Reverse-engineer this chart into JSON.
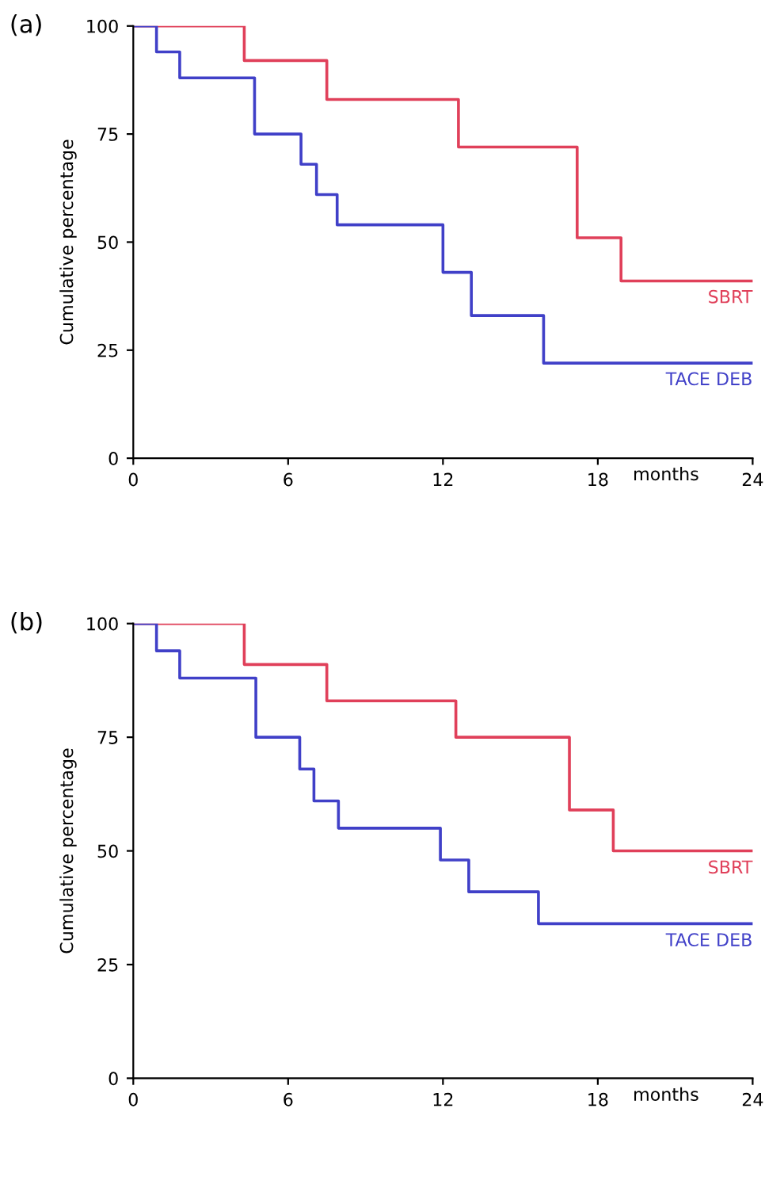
{
  "chart_data": [
    {
      "type": "step",
      "title": "(a)",
      "xlabel": "months",
      "ylabel": "Cumulative percentage",
      "xlim": [
        0,
        24
      ],
      "xticks": [
        0,
        6,
        12,
        18,
        24
      ],
      "ylim": [
        0,
        100
      ],
      "yticks": [
        0,
        25,
        50,
        75,
        100
      ],
      "grid": false,
      "legend": false,
      "series": [
        {
          "name": "SBRT",
          "color": "#e0405a",
          "x": [
            0,
            4.3,
            7.5,
            12.6,
            17.2,
            18.9,
            24
          ],
          "values": [
            100,
            92,
            83,
            72,
            51,
            41,
            41
          ]
        },
        {
          "name": "TACE DEB",
          "color": "#4040c8",
          "x": [
            0,
            0.9,
            1.8,
            4.7,
            6.5,
            7.1,
            7.9,
            12.0,
            13.1,
            15.9,
            24
          ],
          "values": [
            100,
            94,
            88,
            75,
            68,
            61,
            54,
            43,
            33,
            22,
            22
          ]
        }
      ]
    },
    {
      "type": "step",
      "title": "(b)",
      "xlabel": "months",
      "ylabel": "Cumulative percentage",
      "xlim": [
        0,
        24
      ],
      "xticks": [
        0,
        6,
        12,
        18,
        24
      ],
      "ylim": [
        0,
        100
      ],
      "yticks": [
        0,
        25,
        50,
        75,
        100
      ],
      "grid": false,
      "legend": false,
      "series": [
        {
          "name": "SBRT",
          "color": "#e0405a",
          "x": [
            0,
            4.3,
            7.5,
            12.5,
            16.9,
            18.6,
            24
          ],
          "values": [
            100,
            91,
            83,
            75,
            59,
            50,
            50
          ]
        },
        {
          "name": "TACE DEB",
          "color": "#4040c8",
          "x": [
            0,
            0.9,
            1.8,
            4.75,
            6.45,
            7.0,
            7.95,
            11.9,
            13.0,
            15.7,
            24
          ],
          "values": [
            100,
            94,
            88,
            75,
            68,
            61,
            55,
            48,
            41,
            34,
            34
          ]
        }
      ]
    }
  ]
}
